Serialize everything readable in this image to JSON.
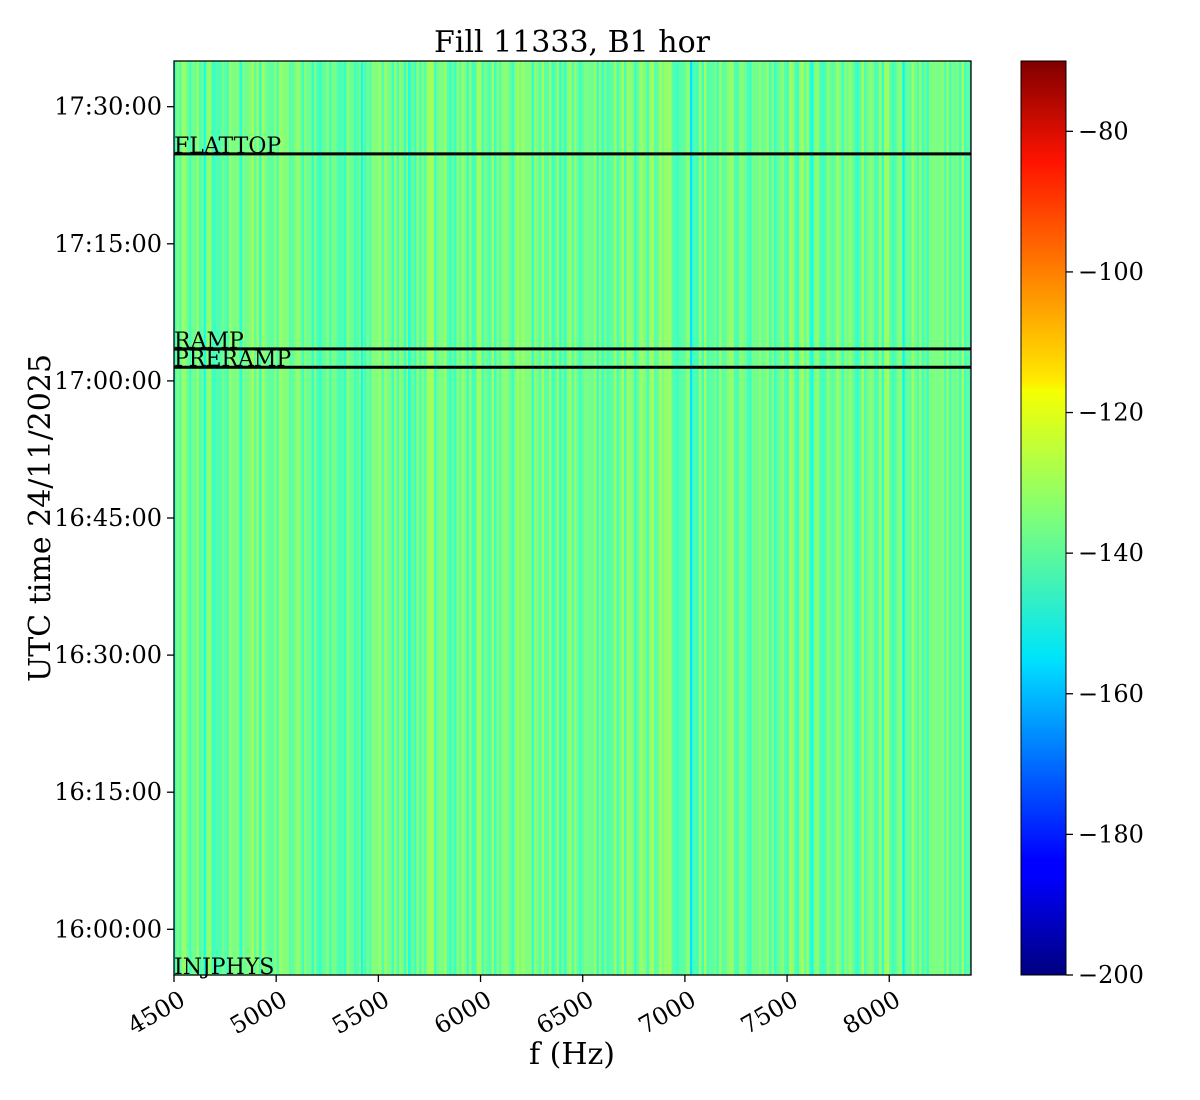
{
  "chart_data": {
    "type": "heatmap",
    "title": "Fill 11333, B1 hor",
    "xlabel": "f (Hz)",
    "ylabel": "UTC time 24/11/2025",
    "xlim": [
      4500,
      8400
    ],
    "x_ticks": [
      4500,
      5000,
      5500,
      6000,
      6500,
      7000,
      7500,
      8000
    ],
    "y_time_range": [
      "15:55:00",
      "17:35:00"
    ],
    "y_ticks": [
      "16:00:00",
      "16:15:00",
      "16:30:00",
      "16:45:00",
      "17:00:00",
      "17:15:00",
      "17:30:00"
    ],
    "colorbar": {
      "colormap": "jet",
      "range": [
        -200,
        -70
      ],
      "ticks": [
        -80,
        -100,
        -120,
        -140,
        -160,
        -180,
        -200
      ]
    },
    "background_value_range": [
      -145,
      -130
    ],
    "notable_lines": [
      {
        "f": 4650,
        "value": -150
      },
      {
        "f": 4830,
        "value": -148
      },
      {
        "f": 5420,
        "value": -150
      },
      {
        "f": 5650,
        "value": -148
      },
      {
        "f": 7030,
        "value": -155
      },
      {
        "f": 7620,
        "value": -150
      },
      {
        "f": 8070,
        "value": -152
      }
    ],
    "annotations": [
      {
        "label": "FLATTOP",
        "time": "17:24:50"
      },
      {
        "label": "RAMP",
        "time": "17:03:30"
      },
      {
        "label": "PRERAMP",
        "time": "17:01:30"
      },
      {
        "label": "INJPHYS",
        "time": "15:55:00"
      }
    ]
  }
}
